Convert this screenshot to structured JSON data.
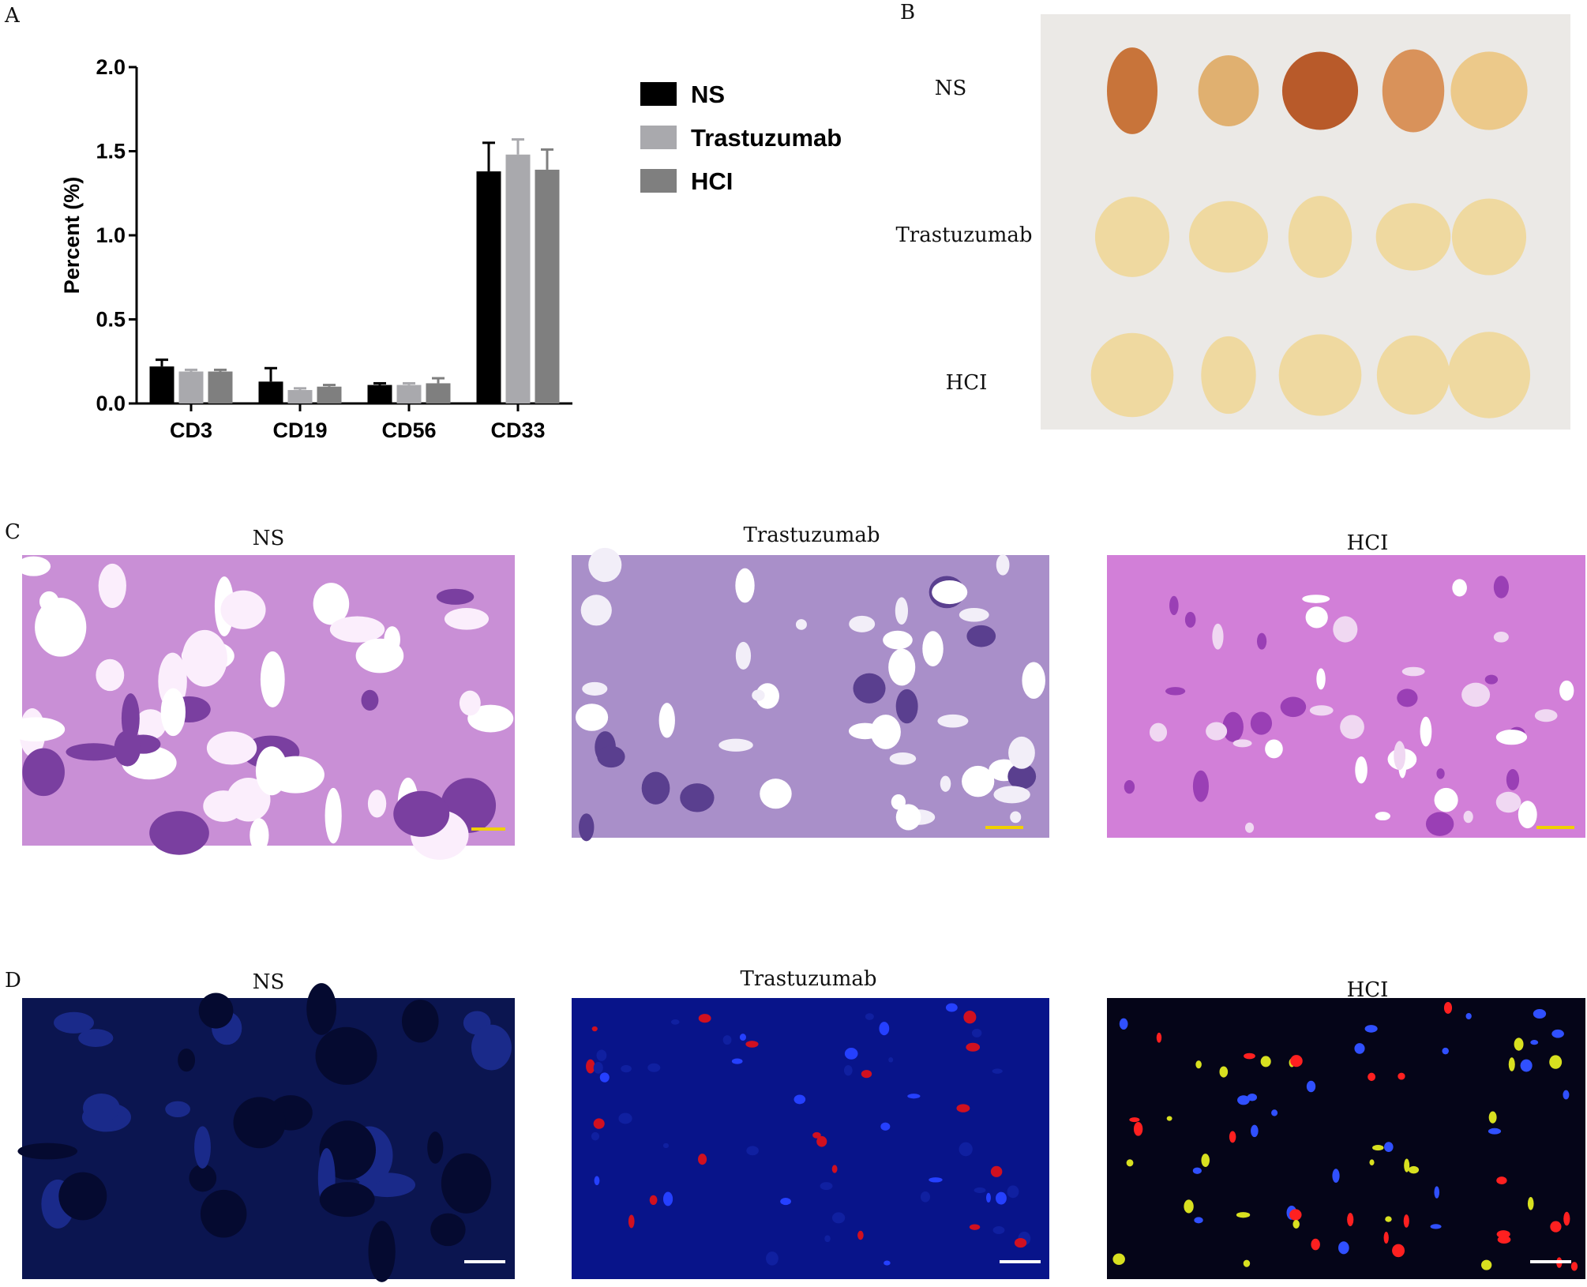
{
  "chart_data": {
    "type": "bar",
    "ylabel": "Percent (%)",
    "categories": [
      "CD3",
      "CD19",
      "CD56",
      "CD33"
    ],
    "series": [
      {
        "name": "NS",
        "color": "#000000",
        "values": [
          0.22,
          0.13,
          0.11,
          1.38
        ],
        "errors": [
          0.04,
          0.08,
          0.01,
          0.17
        ]
      },
      {
        "name": "Trastuzumab",
        "color": "#a9a9ad",
        "values": [
          0.19,
          0.08,
          0.11,
          1.48
        ],
        "errors": [
          0.01,
          0.01,
          0.01,
          0.09
        ]
      },
      {
        "name": "HCI",
        "color": "#7f7f7f",
        "values": [
          0.19,
          0.1,
          0.12,
          1.39
        ],
        "errors": [
          0.01,
          0.01,
          0.03,
          0.12
        ]
      }
    ],
    "ylim": [
      0,
      2
    ],
    "yticks": [
      {
        "value": 0,
        "label": "0.0"
      },
      {
        "value": 0.5,
        "label": "0.5"
      },
      {
        "value": 1,
        "label": "1.0"
      },
      {
        "value": 1.5,
        "label": "1.5"
      },
      {
        "value": 2,
        "label": "2.0"
      }
    ],
    "legend": "right"
  },
  "panel_labels": [
    "A",
    "B",
    "C",
    "D"
  ],
  "photo": {
    "row_labels": [
      "NS",
      "Trastuzumab",
      "HCI"
    ]
  },
  "he_stain": {
    "titles": [
      "NS",
      "Trastuzumab",
      "HCI"
    ]
  },
  "fluorescence": {
    "titles": [
      "NS",
      "Trastuzumab",
      "HCI"
    ]
  }
}
